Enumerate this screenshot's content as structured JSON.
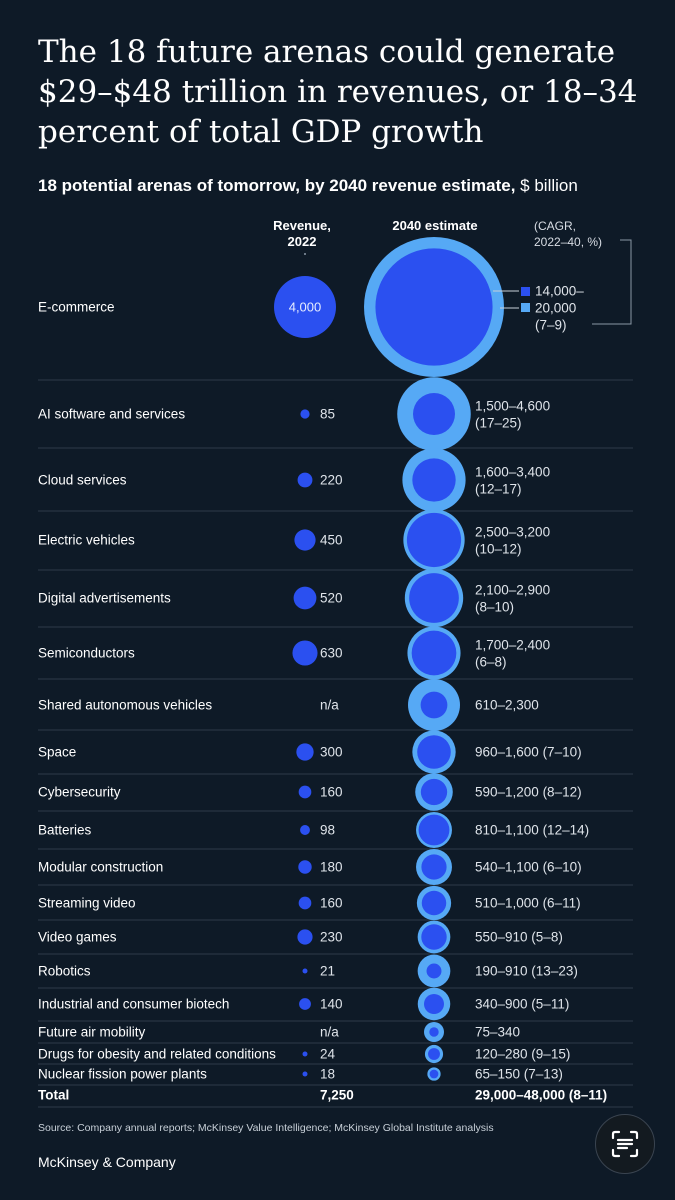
{
  "title": "The 18 future arenas could generate $29–$48 trillion in revenues, or 18–34 percent of total GDP growth",
  "subtitle": "18 potential arenas of tomorrow, by 2040 revenue estimate,",
  "subtitle_unit": "$ billion",
  "columns": {
    "revenue_2022_line1": "Revenue,",
    "revenue_2022_line2": "2022",
    "estimate_2040": "2040 estimate",
    "cagr_line1": "(CAGR,",
    "cagr_line2": "2022–40, %)"
  },
  "legend": {
    "low_label": "14,000–",
    "high_label": "20,000",
    "cagr_label": "(7–9)"
  },
  "colors": {
    "background": "#0e1a27",
    "revenue_2022": "#2b50f0",
    "estimate_low": "#2b50f0",
    "estimate_high": "#56a9f5",
    "divider": "#2d3b4a"
  },
  "chart_data": {
    "type": "bubble",
    "unit": "$ billion",
    "rows": [
      {
        "label": "E-commerce",
        "revenue_2022": 4000,
        "revenue_2022_label": "4,000",
        "low": 14000,
        "high": 20000,
        "estimate_label": "",
        "cagr_label": ""
      },
      {
        "label": "AI software and services",
        "revenue_2022": 85,
        "revenue_2022_label": "85",
        "low": 1500,
        "high": 4600,
        "estimate_label": "1,500–4,600",
        "cagr_label": "(17–25)"
      },
      {
        "label": "Cloud services",
        "revenue_2022": 220,
        "revenue_2022_label": "220",
        "low": 1600,
        "high": 3400,
        "estimate_label": "1,600–3,400",
        "cagr_label": "(12–17)"
      },
      {
        "label": "Electric vehicles",
        "revenue_2022": 450,
        "revenue_2022_label": "450",
        "low": 2500,
        "high": 3200,
        "estimate_label": "2,500–3,200",
        "cagr_label": "(10–12)"
      },
      {
        "label": "Digital advertisements",
        "revenue_2022": 520,
        "revenue_2022_label": "520",
        "low": 2100,
        "high": 2900,
        "estimate_label": "2,100–2,900",
        "cagr_label": "(8–10)"
      },
      {
        "label": "Semiconductors",
        "revenue_2022": 630,
        "revenue_2022_label": "630",
        "low": 1700,
        "high": 2400,
        "estimate_label": "1,700–2,400",
        "cagr_label": "(6–8)"
      },
      {
        "label": "Shared autonomous vehicles",
        "revenue_2022": null,
        "revenue_2022_label": "n/a",
        "low": 610,
        "high": 2300,
        "estimate_label": "610–2,300",
        "cagr_label": ""
      },
      {
        "label": "Space",
        "revenue_2022": 300,
        "revenue_2022_label": "300",
        "low": 960,
        "high": 1600,
        "estimate_label": "960–1,600 (7–10)",
        "cagr_label": ""
      },
      {
        "label": "Cybersecurity",
        "revenue_2022": 160,
        "revenue_2022_label": "160",
        "low": 590,
        "high": 1200,
        "estimate_label": "590–1,200 (8–12)",
        "cagr_label": ""
      },
      {
        "label": "Batteries",
        "revenue_2022": 98,
        "revenue_2022_label": "98",
        "low": 810,
        "high": 1100,
        "estimate_label": "810–1,100 (12–14)",
        "cagr_label": ""
      },
      {
        "label": "Modular construction",
        "revenue_2022": 180,
        "revenue_2022_label": "180",
        "low": 540,
        "high": 1100,
        "estimate_label": "540–1,100 (6–10)",
        "cagr_label": ""
      },
      {
        "label": "Streaming video",
        "revenue_2022": 160,
        "revenue_2022_label": "160",
        "low": 510,
        "high": 1000,
        "estimate_label": "510–1,000 (6–11)",
        "cagr_label": ""
      },
      {
        "label": "Video games",
        "revenue_2022": 230,
        "revenue_2022_label": "230",
        "low": 550,
        "high": 910,
        "estimate_label": "550–910 (5–8)",
        "cagr_label": ""
      },
      {
        "label": "Robotics",
        "revenue_2022": 21,
        "revenue_2022_label": "21",
        "low": 190,
        "high": 910,
        "estimate_label": "190–910 (13–23)",
        "cagr_label": ""
      },
      {
        "label": "Industrial and consumer biotech",
        "revenue_2022": 140,
        "revenue_2022_label": "140",
        "low": 340,
        "high": 900,
        "estimate_label": "340–900 (5–11)",
        "cagr_label": ""
      },
      {
        "label": "Future air mobility",
        "revenue_2022": null,
        "revenue_2022_label": "n/a",
        "low": 75,
        "high": 340,
        "estimate_label": "75–340",
        "cagr_label": ""
      },
      {
        "label": "Drugs for obesity and related conditions",
        "revenue_2022": 24,
        "revenue_2022_label": "24",
        "low": 120,
        "high": 280,
        "estimate_label": "120–280 (9–15)",
        "cagr_label": ""
      },
      {
        "label": "Nuclear fission power plants",
        "revenue_2022": 18,
        "revenue_2022_label": "18",
        "low": 65,
        "high": 150,
        "estimate_label": "65–150 (7–13)",
        "cagr_label": ""
      }
    ],
    "total": {
      "label": "Total",
      "revenue_2022_label": "7,250",
      "estimate_label": "29,000–48,000 (8–11)"
    }
  },
  "source": "Source: Company annual reports; McKinsey Value Intelligence; McKinsey Global Institute analysis",
  "brand": "McKinsey & Company",
  "scan_button_icon": "live-text-scan-icon"
}
